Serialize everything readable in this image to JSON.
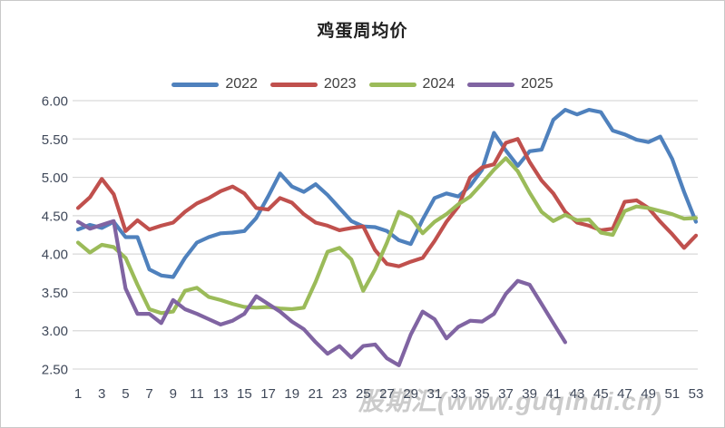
{
  "watermark": {
    "text": "股期汇(www.guqihui.cn)"
  },
  "chart_data": {
    "type": "line",
    "title": "鸡蛋周均价",
    "xlabel": "",
    "ylabel": "",
    "ylim": [
      2.5,
      6.0
    ],
    "grid": true,
    "legend_position": "top-center",
    "grid_color": "#d9d9d9",
    "tick_color": "#3f4859",
    "x": [
      1,
      2,
      3,
      4,
      5,
      6,
      7,
      8,
      9,
      10,
      11,
      12,
      13,
      14,
      15,
      16,
      17,
      18,
      19,
      20,
      21,
      22,
      23,
      24,
      25,
      26,
      27,
      28,
      29,
      30,
      31,
      32,
      33,
      34,
      35,
      36,
      37,
      38,
      39,
      40,
      41,
      42,
      43,
      44,
      45,
      46,
      47,
      48,
      49,
      50,
      51,
      52,
      53
    ],
    "x_tick_labels": [
      "1",
      "3",
      "5",
      "7",
      "9",
      "11",
      "13",
      "15",
      "17",
      "19",
      "21",
      "23",
      "25",
      "27",
      "29",
      "31",
      "33",
      "35",
      "37",
      "39",
      "41",
      "43",
      "45",
      "47",
      "49",
      "51",
      "53"
    ],
    "y_ticks": [
      6.0,
      5.5,
      5.0,
      4.5,
      4.0,
      3.5,
      3.0,
      2.5
    ],
    "y_tick_labels": [
      "6.00",
      "5.50",
      "5.00",
      "4.50",
      "4.00",
      "3.50",
      "3.00",
      "2.50"
    ],
    "series": [
      {
        "name": "2022",
        "color": "#4f81bd",
        "values": [
          4.32,
          4.38,
          4.34,
          4.42,
          4.22,
          4.22,
          3.8,
          3.72,
          3.7,
          3.95,
          4.15,
          4.22,
          4.27,
          4.28,
          4.3,
          4.47,
          4.75,
          5.05,
          4.88,
          4.81,
          4.91,
          4.77,
          4.6,
          4.43,
          4.36,
          4.35,
          4.3,
          4.18,
          4.13,
          4.45,
          4.73,
          4.79,
          4.75,
          4.89,
          5.1,
          5.58,
          5.35,
          5.15,
          5.34,
          5.36,
          5.75,
          5.88,
          5.82,
          5.88,
          5.85,
          5.61,
          5.56,
          5.49,
          5.46,
          5.53,
          5.24,
          4.81,
          4.42
        ]
      },
      {
        "name": "2023",
        "color": "#c0504d",
        "values": [
          4.6,
          4.74,
          4.98,
          4.78,
          4.3,
          4.44,
          4.32,
          4.37,
          4.41,
          4.55,
          4.66,
          4.73,
          4.82,
          4.88,
          4.79,
          4.6,
          4.58,
          4.73,
          4.67,
          4.52,
          4.41,
          4.37,
          4.31,
          4.34,
          4.36,
          4.05,
          3.87,
          3.84,
          3.9,
          3.95,
          4.17,
          4.42,
          4.62,
          5.0,
          5.13,
          5.17,
          5.45,
          5.5,
          5.2,
          4.96,
          4.79,
          4.55,
          4.41,
          4.37,
          4.31,
          4.33,
          4.68,
          4.7,
          4.6,
          4.42,
          4.26,
          4.08,
          4.24
        ]
      },
      {
        "name": "2024",
        "color": "#9bbb59",
        "values": [
          4.15,
          4.02,
          4.12,
          4.09,
          3.95,
          3.6,
          3.28,
          3.23,
          3.25,
          3.52,
          3.56,
          3.44,
          3.4,
          3.35,
          3.31,
          3.3,
          3.31,
          3.29,
          3.28,
          3.3,
          3.64,
          4.03,
          4.08,
          3.93,
          3.52,
          3.8,
          4.15,
          4.55,
          4.48,
          4.27,
          4.42,
          4.52,
          4.65,
          4.75,
          4.92,
          5.1,
          5.25,
          5.08,
          4.8,
          4.55,
          4.43,
          4.51,
          4.44,
          4.45,
          4.28,
          4.25,
          4.56,
          4.62,
          4.6,
          4.56,
          4.52,
          4.46,
          4.47
        ]
      },
      {
        "name": "2025",
        "color": "#8064a2",
        "values": [
          4.42,
          4.33,
          4.38,
          4.43,
          3.55,
          3.22,
          3.22,
          3.1,
          3.4,
          3.28,
          3.22,
          3.15,
          3.08,
          3.13,
          3.22,
          3.45,
          3.35,
          3.25,
          3.12,
          3.02,
          2.85,
          2.7,
          2.8,
          2.65,
          2.8,
          2.82,
          2.64,
          2.55,
          2.95,
          3.25,
          3.15,
          2.9,
          3.05,
          3.13,
          3.12,
          3.22,
          3.48,
          3.65,
          3.6,
          3.35,
          3.1,
          2.85
        ]
      }
    ]
  }
}
